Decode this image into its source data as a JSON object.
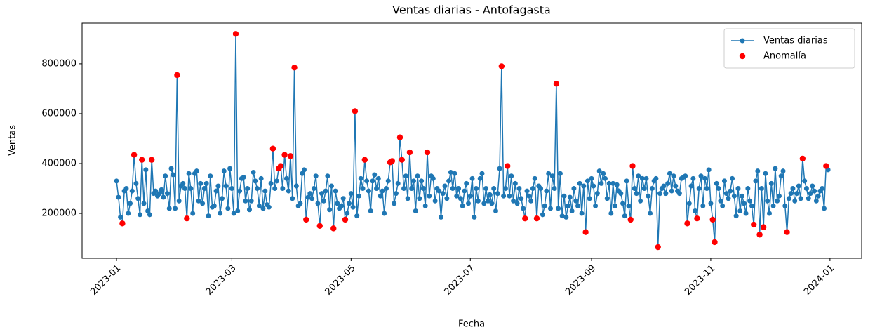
{
  "chart_data": {
    "type": "line",
    "title": "Ventas diarias - Antofagasta",
    "x_label": "Fecha",
    "y_label": "Ventas",
    "xlim": [
      -17.6,
      381.2
    ],
    "ylim": [
      20000,
      963000
    ],
    "xticks": [
      {
        "value": 0,
        "label": "2023-01"
      },
      {
        "value": 59,
        "label": "2023-03"
      },
      {
        "value": 120,
        "label": "2023-05"
      },
      {
        "value": 181,
        "label": "2023-07"
      },
      {
        "value": 243,
        "label": "2023-09"
      },
      {
        "value": 304,
        "label": "2023-11"
      },
      {
        "value": 365,
        "label": "2024-01"
      }
    ],
    "yticks": [
      200000,
      400000,
      600000,
      800000
    ],
    "grid": false,
    "legend": "upper right",
    "series": [
      {
        "name": "Ventas diarias",
        "color": "#1f77b4",
        "type": "line",
        "x": [
          0,
          1,
          2,
          3,
          4,
          5,
          6,
          7,
          8,
          9,
          10,
          11,
          12,
          13,
          14,
          15,
          16,
          17,
          18,
          19,
          20,
          21,
          22,
          23,
          24,
          25,
          26,
          27,
          28,
          29,
          30,
          31,
          32,
          33,
          34,
          35,
          36,
          37,
          38,
          39,
          40,
          41,
          42,
          43,
          44,
          45,
          46,
          47,
          48,
          49,
          50,
          51,
          52,
          53,
          54,
          55,
          56,
          57,
          58,
          59,
          60,
          61,
          62,
          63,
          64,
          65,
          66,
          67,
          68,
          69,
          70,
          71,
          72,
          73,
          74,
          75,
          76,
          77,
          78,
          79,
          80,
          81,
          82,
          83,
          84,
          85,
          86,
          87,
          88,
          89,
          90,
          91,
          92,
          93,
          94,
          95,
          96,
          97,
          98,
          99,
          100,
          101,
          102,
          103,
          104,
          105,
          106,
          107,
          108,
          109,
          110,
          111,
          112,
          113,
          114,
          115,
          116,
          117,
          118,
          119,
          120,
          121,
          122,
          123,
          124,
          125,
          126,
          127,
          128,
          129,
          130,
          131,
          132,
          133,
          134,
          135,
          136,
          137,
          138,
          139,
          140,
          141,
          142,
          143,
          144,
          145,
          146,
          147,
          148,
          149,
          150,
          151,
          152,
          153,
          154,
          155,
          156,
          157,
          158,
          159,
          160,
          161,
          162,
          163,
          164,
          165,
          166,
          167,
          168,
          169,
          170,
          171,
          172,
          173,
          174,
          175,
          176,
          177,
          178,
          179,
          180,
          181,
          182,
          183,
          184,
          185,
          186,
          187,
          188,
          189,
          190,
          191,
          192,
          193,
          194,
          195,
          196,
          197,
          198,
          199,
          200,
          201,
          202,
          203,
          204,
          205,
          206,
          207,
          208,
          209,
          210,
          211,
          212,
          213,
          214,
          215,
          216,
          217,
          218,
          219,
          220,
          221,
          222,
          223,
          224,
          225,
          226,
          227,
          228,
          229,
          230,
          231,
          232,
          233,
          234,
          235,
          236,
          237,
          238,
          239,
          240,
          241,
          242,
          243,
          244,
          245,
          246,
          247,
          248,
          249,
          250,
          251,
          252,
          253,
          254,
          255,
          256,
          257,
          258,
          259,
          260,
          261,
          262,
          263,
          264,
          265,
          266,
          267,
          268,
          269,
          270,
          271,
          272,
          273,
          274,
          275,
          276,
          277,
          278,
          279,
          280,
          281,
          282,
          283,
          284,
          285,
          286,
          287,
          288,
          289,
          290,
          291,
          292,
          293,
          294,
          295,
          296,
          297,
          298,
          299,
          300,
          301,
          302,
          303,
          304,
          305,
          306,
          307,
          308,
          309,
          310,
          311,
          312,
          313,
          314,
          315,
          316,
          317,
          318,
          319,
          320,
          321,
          322,
          323,
          324,
          325,
          326,
          327,
          328,
          329,
          330,
          331,
          332,
          333,
          334,
          335,
          336,
          337,
          338,
          339,
          340,
          341,
          342,
          343,
          344,
          345,
          346,
          347,
          348,
          349,
          350,
          351,
          352,
          353,
          354,
          355,
          356,
          357,
          358,
          359,
          360,
          361,
          362,
          363,
          364
        ],
        "values": [
          330000,
          265000,
          185000,
          160000,
          290000,
          300000,
          200000,
          240000,
          290000,
          435000,
          320000,
          260000,
          195000,
          415000,
          240000,
          375000,
          210000,
          195000,
          415000,
          280000,
          290000,
          270000,
          280000,
          295000,
          265000,
          350000,
          280000,
          220000,
          380000,
          355000,
          220000,
          755000,
          250000,
          310000,
          320000,
          300000,
          180000,
          360000,
          300000,
          200000,
          360000,
          370000,
          250000,
          320000,
          240000,
          300000,
          320000,
          190000,
          350000,
          225000,
          230000,
          290000,
          310000,
          200000,
          260000,
          370000,
          310000,
          220000,
          380000,
          300000,
          200000,
          920000,
          210000,
          290000,
          340000,
          345000,
          250000,
          300000,
          215000,
          250000,
          365000,
          330000,
          300000,
          230000,
          340000,
          220000,
          290000,
          235000,
          225000,
          320000,
          460000,
          300000,
          330000,
          380000,
          390000,
          300000,
          435000,
          340000,
          290000,
          430000,
          260000,
          785000,
          310000,
          230000,
          240000,
          360000,
          375000,
          175000,
          265000,
          280000,
          260000,
          300000,
          350000,
          240000,
          150000,
          280000,
          250000,
          290000,
          350000,
          215000,
          310000,
          140000,
          290000,
          240000,
          220000,
          230000,
          260000,
          175000,
          200000,
          240000,
          280000,
          225000,
          610000,
          190000,
          270000,
          340000,
          300000,
          415000,
          330000,
          290000,
          210000,
          330000,
          355000,
          300000,
          340000,
          270000,
          290000,
          200000,
          300000,
          330000,
          405000,
          410000,
          240000,
          280000,
          320000,
          505000,
          415000,
          300000,
          350000,
          260000,
          445000,
          300000,
          330000,
          210000,
          350000,
          260000,
          330000,
          300000,
          230000,
          445000,
          270000,
          350000,
          340000,
          250000,
          300000,
          290000,
          185000,
          280000,
          310000,
          260000,
          330000,
          365000,
          300000,
          360000,
          270000,
          300000,
          260000,
          230000,
          290000,
          320000,
          240000,
          270000,
          340000,
          185000,
          300000,
          250000,
          340000,
          360000,
          240000,
          300000,
          250000,
          275000,
          240000,
          300000,
          210000,
          280000,
          380000,
          790000,
          270000,
          300000,
          390000,
          270000,
          350000,
          250000,
          320000,
          240000,
          300000,
          260000,
          220000,
          180000,
          290000,
          270000,
          250000,
          300000,
          340000,
          180000,
          310000,
          300000,
          195000,
          230000,
          290000,
          360000,
          220000,
          350000,
          300000,
          720000,
          220000,
          360000,
          190000,
          270000,
          185000,
          230000,
          265000,
          210000,
          300000,
          250000,
          230000,
          320000,
          200000,
          310000,
          125000,
          330000,
          260000,
          340000,
          310000,
          230000,
          280000,
          370000,
          320000,
          360000,
          340000,
          260000,
          320000,
          200000,
          320000,
          230000,
          315000,
          290000,
          280000,
          240000,
          190000,
          330000,
          230000,
          175000,
          390000,
          300000,
          280000,
          350000,
          250000,
          340000,
          300000,
          340000,
          270000,
          200000,
          300000,
          330000,
          340000,
          65000,
          280000,
          300000,
          310000,
          280000,
          320000,
          360000,
          290000,
          350000,
          310000,
          290000,
          280000,
          340000,
          345000,
          350000,
          160000,
          240000,
          310000,
          340000,
          210000,
          180000,
          300000,
          350000,
          230000,
          340000,
          300000,
          375000,
          240000,
          175000,
          85000,
          320000,
          300000,
          250000,
          230000,
          330000,
          280000,
          260000,
          290000,
          340000,
          270000,
          190000,
          300000,
          210000,
          270000,
          240000,
          200000,
          300000,
          250000,
          230000,
          155000,
          330000,
          370000,
          115000,
          300000,
          145000,
          360000,
          250000,
          200000,
          320000,
          230000,
          380000,
          250000,
          270000,
          350000,
          370000,
          230000,
          125000,
          260000,
          280000,
          300000,
          250000,
          280000,
          310000,
          260000,
          420000,
          330000,
          300000,
          260000,
          280000,
          310000,
          290000,
          250000,
          270000,
          290000,
          300000,
          220000,
          390000,
          375000
        ]
      },
      {
        "name": "Anomalía",
        "color": "#ff0000",
        "type": "scatter",
        "x": [
          3,
          9,
          13,
          18,
          31,
          36,
          61,
          80,
          83,
          84,
          86,
          89,
          91,
          97,
          104,
          111,
          117,
          122,
          127,
          140,
          141,
          145,
          146,
          150,
          159,
          197,
          200,
          209,
          215,
          225,
          240,
          263,
          264,
          277,
          292,
          297,
          305,
          306,
          326,
          329,
          331,
          343,
          351,
          363
        ],
        "values": [
          160000,
          435000,
          415000,
          415000,
          755000,
          180000,
          920000,
          460000,
          380000,
          390000,
          435000,
          430000,
          785000,
          175000,
          150000,
          140000,
          175000,
          610000,
          415000,
          405000,
          410000,
          505000,
          415000,
          445000,
          445000,
          790000,
          390000,
          180000,
          180000,
          720000,
          125000,
          175000,
          390000,
          65000,
          160000,
          180000,
          175000,
          85000,
          155000,
          115000,
          145000,
          125000,
          420000,
          390000
        ]
      }
    ]
  }
}
